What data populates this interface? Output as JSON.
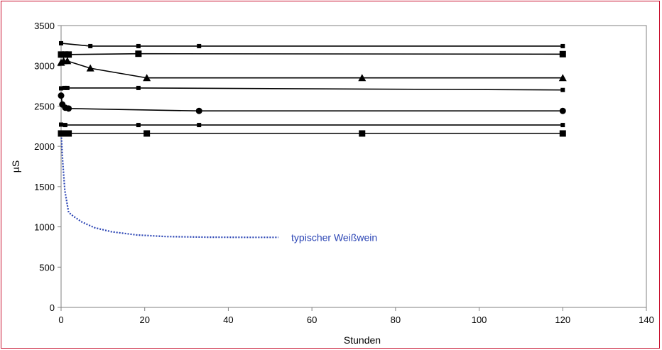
{
  "chart_data": {
    "type": "line",
    "title": "",
    "xlabel": "Stunden",
    "ylabel": "µS",
    "xlim": [
      0,
      140
    ],
    "ylim": [
      0,
      3500
    ],
    "x_ticks": [
      0,
      20,
      40,
      60,
      80,
      100,
      120,
      140
    ],
    "y_ticks": [
      0,
      500,
      1000,
      1500,
      2000,
      2500,
      3000,
      3500
    ],
    "grid": false,
    "legend": "none",
    "colors": {
      "series": "#000000",
      "dotted_series": "#2a44b4",
      "frame": "#c8102e"
    },
    "series": [
      {
        "marker": "small-square",
        "line": "solid",
        "points": [
          [
            0,
            3280
          ],
          [
            7,
            3245
          ],
          [
            18.5,
            3245
          ],
          [
            33,
            3245
          ],
          [
            120,
            3245
          ]
        ]
      },
      {
        "marker": "square",
        "line": "solid",
        "points": [
          [
            0,
            3140
          ],
          [
            1,
            3140
          ],
          [
            1.8,
            3140
          ],
          [
            18.5,
            3150
          ],
          [
            120,
            3145
          ]
        ]
      },
      {
        "marker": "triangle",
        "line": "solid",
        "points": [
          [
            0,
            3040
          ],
          [
            0.6,
            3060
          ],
          [
            1.5,
            3060
          ],
          [
            7,
            2970
          ],
          [
            20.5,
            2850
          ],
          [
            72,
            2850
          ],
          [
            120,
            2850
          ]
        ]
      },
      {
        "marker": "small-square",
        "line": "solid",
        "points": [
          [
            0,
            2720
          ],
          [
            0.8,
            2725
          ],
          [
            1.5,
            2725
          ],
          [
            18.5,
            2725
          ],
          [
            120,
            2700
          ]
        ]
      },
      {
        "marker": "circle",
        "line": "solid",
        "points": [
          [
            0,
            2630
          ],
          [
            0.3,
            2520
          ],
          [
            1,
            2480
          ],
          [
            1.8,
            2470
          ],
          [
            33,
            2440
          ],
          [
            120,
            2440
          ]
        ]
      },
      {
        "marker": "small-square",
        "line": "solid",
        "points": [
          [
            0,
            2270
          ],
          [
            1,
            2265
          ],
          [
            18.5,
            2265
          ],
          [
            33,
            2265
          ],
          [
            120,
            2265
          ]
        ]
      },
      {
        "marker": "square",
        "line": "solid",
        "points": [
          [
            0,
            2160
          ],
          [
            0.5,
            2160
          ],
          [
            1.8,
            2160
          ],
          [
            20.5,
            2160
          ],
          [
            72,
            2160
          ],
          [
            120,
            2160
          ]
        ]
      },
      {
        "name": "typischer Weißwein",
        "marker": "none",
        "line": "dotted",
        "points": [
          [
            0,
            2180
          ],
          [
            0.4,
            1800
          ],
          [
            0.9,
            1450
          ],
          [
            1.8,
            1180
          ],
          [
            3,
            1130
          ],
          [
            5,
            1060
          ],
          [
            8,
            990
          ],
          [
            12,
            940
          ],
          [
            18,
            900
          ],
          [
            25,
            880
          ],
          [
            35,
            872
          ],
          [
            45,
            870
          ],
          [
            52,
            870
          ]
        ]
      }
    ],
    "annotations": [
      {
        "text": "typischer Weißwein",
        "series": "typischer Weißwein"
      }
    ]
  }
}
